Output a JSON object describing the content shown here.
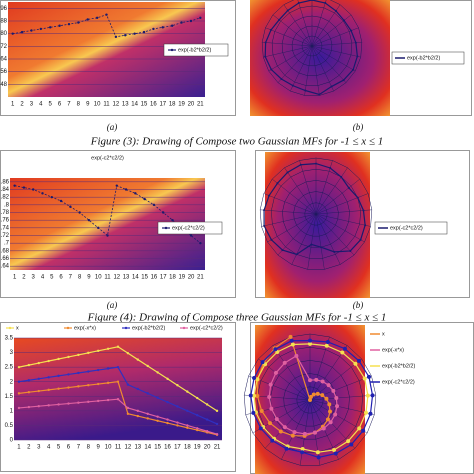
{
  "panels": [
    {
      "line": {
        "type": "line",
        "categories": [
          1,
          2,
          3,
          4,
          5,
          6,
          7,
          8,
          9,
          10,
          11,
          12,
          13,
          14,
          15,
          16,
          17,
          18,
          19,
          20,
          21
        ],
        "ylim": [
          0.4,
          1.0
        ],
        "yticks": [
          {
            "value": 0.96,
            "label": ".96"
          },
          {
            "value": 0.88,
            "label": ".88"
          },
          {
            "value": 0.8,
            "label": ".80"
          },
          {
            "value": 0.72,
            "label": ".72"
          },
          {
            "value": 0.64,
            "label": ".64"
          },
          {
            "value": 0.56,
            "label": ".56"
          },
          {
            "value": 0.48,
            "label": ".48"
          }
        ],
        "series": [
          {
            "name": "exp(-b2*b2/2)",
            "color": "#1a1a6e",
            "values": [
              0.8,
              0.81,
              0.82,
              0.83,
              0.84,
              0.85,
              0.86,
              0.87,
              0.89,
              0.9,
              0.92,
              0.78,
              0.79,
              0.8,
              0.81,
              0.83,
              0.84,
              0.85,
              0.87,
              0.88,
              0.9
            ]
          }
        ]
      },
      "radar": {
        "type": "radar",
        "rlim": [
          0,
          1
        ],
        "rticks": [
          0.2,
          0.4,
          0.6,
          0.8,
          1
        ],
        "series": [
          {
            "name": "exp(-b2*b2/2)",
            "color": "#1a1a6e",
            "values": [
              0.92,
              0.9,
              0.85,
              0.82,
              0.84,
              0.88,
              0.93,
              0.95,
              0.93,
              0.9,
              0.98,
              0.9,
              0.88,
              0.9,
              0.94,
              0.96,
              0.93,
              0.88,
              0.84,
              0.86,
              0.9
            ]
          }
        ]
      },
      "sublabels": [
        "(a)",
        "(b)"
      ],
      "caption": "Figure (3): Drawing of Compose two Gaussian MFs  for -1 ≤  x ≤ 1"
    },
    {
      "line": {
        "type": "line",
        "title": "exp(-c2*c2/2)",
        "categories": [
          1,
          2,
          3,
          4,
          5,
          6,
          7,
          8,
          9,
          10,
          11,
          12,
          13,
          14,
          15,
          16,
          17,
          18,
          19,
          20,
          21
        ],
        "ylim": [
          0.63,
          0.87
        ],
        "yticks": [
          {
            "value": 0.86,
            "label": ".86"
          },
          {
            "value": 0.84,
            "label": ".84"
          },
          {
            "value": 0.82,
            "label": ".82"
          },
          {
            "value": 0.8,
            "label": ".8"
          },
          {
            "value": 0.78,
            "label": ".78"
          },
          {
            "value": 0.76,
            "label": ".76"
          },
          {
            "value": 0.74,
            "label": ".74"
          },
          {
            "value": 0.72,
            "label": ".72"
          },
          {
            "value": 0.7,
            "label": ".7"
          },
          {
            "value": 0.68,
            "label": ".68"
          },
          {
            "value": 0.66,
            "label": ".66"
          },
          {
            "value": 0.64,
            "label": ".64"
          }
        ],
        "series": [
          {
            "name": "exp(-c2*c2/2)",
            "color": "#1a1a6e",
            "values": [
              0.85,
              0.845,
              0.84,
              0.83,
              0.82,
              0.81,
              0.795,
              0.78,
              0.76,
              0.74,
              0.72,
              0.85,
              0.84,
              0.83,
              0.815,
              0.8,
              0.78,
              0.76,
              0.74,
              0.72,
              0.7
            ]
          }
        ]
      },
      "radar": {
        "type": "radar",
        "rlim": [
          0,
          1
        ],
        "rticks": [
          0.2,
          0.4,
          0.6,
          0.8,
          1
        ],
        "series": [
          {
            "name": "exp(-c2*c2/2)",
            "color": "#1a1a6e",
            "values": [
              0.9,
              0.86,
              0.8,
              0.75,
              0.8,
              0.85,
              0.9,
              0.92,
              0.9,
              0.75,
              0.6,
              0.55,
              0.8,
              0.88,
              0.92,
              0.95,
              0.93,
              0.9,
              0.88,
              0.9,
              0.92
            ]
          }
        ]
      },
      "sublabels": [
        "(a)",
        "(b)"
      ],
      "caption": "Figure (4): Drawing of Compose three Gaussian MFs  for -1 ≤  x ≤ 1"
    },
    {
      "line": {
        "type": "line",
        "categories": [
          1,
          2,
          3,
          4,
          5,
          6,
          7,
          8,
          9,
          10,
          11,
          12,
          13,
          14,
          15,
          16,
          17,
          18,
          19,
          20,
          21
        ],
        "ylim": [
          0,
          3.5
        ],
        "yticks": [
          0,
          0.5,
          1,
          1.5,
          2,
          2.5,
          3,
          3.5
        ],
        "series": [
          {
            "name": "x",
            "color": "#f5e050",
            "values": [
              2.5,
              2.57,
              2.64,
              2.71,
              2.78,
              2.85,
              2.92,
              2.99,
              3.06,
              3.13,
              3.2,
              2.98,
              2.76,
              2.54,
              2.32,
              2.1,
              1.88,
              1.66,
              1.44,
              1.22,
              1.0
            ]
          },
          {
            "name": "exp(-x*x)",
            "color": "#f08a30",
            "values": [
              1.6,
              1.64,
              1.68,
              1.72,
              1.76,
              1.8,
              1.84,
              1.88,
              1.92,
              1.96,
              2.0,
              0.9,
              0.82,
              0.74,
              0.66,
              0.58,
              0.5,
              0.42,
              0.34,
              0.26,
              0.18
            ]
          },
          {
            "name": "exp(-b2*b2/2)",
            "color": "#3030c0",
            "values": [
              2.0,
              2.05,
              2.1,
              2.15,
              2.2,
              2.25,
              2.3,
              2.35,
              2.4,
              2.45,
              2.5,
              1.9,
              1.75,
              1.6,
              1.45,
              1.3,
              1.15,
              1.0,
              0.85,
              0.7,
              0.55
            ]
          },
          {
            "name": "exp(-c2*c2/2)",
            "color": "#e060a0",
            "values": [
              1.1,
              1.13,
              1.16,
              1.19,
              1.22,
              1.25,
              1.28,
              1.31,
              1.34,
              1.37,
              1.4,
              1.1,
              1.0,
              0.9,
              0.8,
              0.7,
              0.6,
              0.5,
              0.4,
              0.3,
              0.2
            ]
          }
        ]
      },
      "radar": {
        "type": "radar",
        "rlim": [
          0,
          1
        ],
        "rticks": [
          0.2,
          0.4,
          0.6,
          0.8,
          1
        ],
        "series": [
          {
            "name": "x",
            "color": "#f08a30",
            "values": [
              0,
              0.05,
              0.1,
              0.15,
              0.2,
              0.25,
              0.3,
              0.35,
              0.4,
              0.45,
              0.5,
              0.55,
              0.6,
              0.65,
              0.7,
              0.75,
              0.8,
              0.85,
              0.9,
              0.95,
              1
            ]
          },
          {
            "name": "exp(-x*x)",
            "color": "#e060a0",
            "values": [
              0.3,
              0.32,
              0.34,
              0.36,
              0.38,
              0.4,
              0.42,
              0.44,
              0.46,
              0.48,
              0.5,
              0.52,
              0.54,
              0.56,
              0.58,
              0.6,
              0.62,
              0.64,
              0.66,
              0.68,
              0.7
            ]
          },
          {
            "name": "exp(-b2*b2/2)",
            "color": "#f5e050",
            "values": [
              0.85,
              0.86,
              0.87,
              0.88,
              0.89,
              0.88,
              0.87,
              0.86,
              0.85,
              0.84,
              0.8,
              0.75,
              0.78,
              0.8,
              0.82,
              0.84,
              0.85,
              0.86,
              0.87,
              0.88,
              0.88
            ]
          },
          {
            "name": "exp(-c2*c2/2)",
            "color": "#2020b0",
            "values": [
              0.9,
              0.92,
              0.94,
              0.95,
              0.96,
              0.95,
              0.94,
              0.93,
              0.92,
              0.9,
              0.88,
              0.8,
              0.82,
              0.84,
              0.86,
              0.88,
              0.9,
              0.91,
              0.92,
              0.93,
              0.94
            ]
          }
        ]
      },
      "sublabels": []
    }
  ]
}
